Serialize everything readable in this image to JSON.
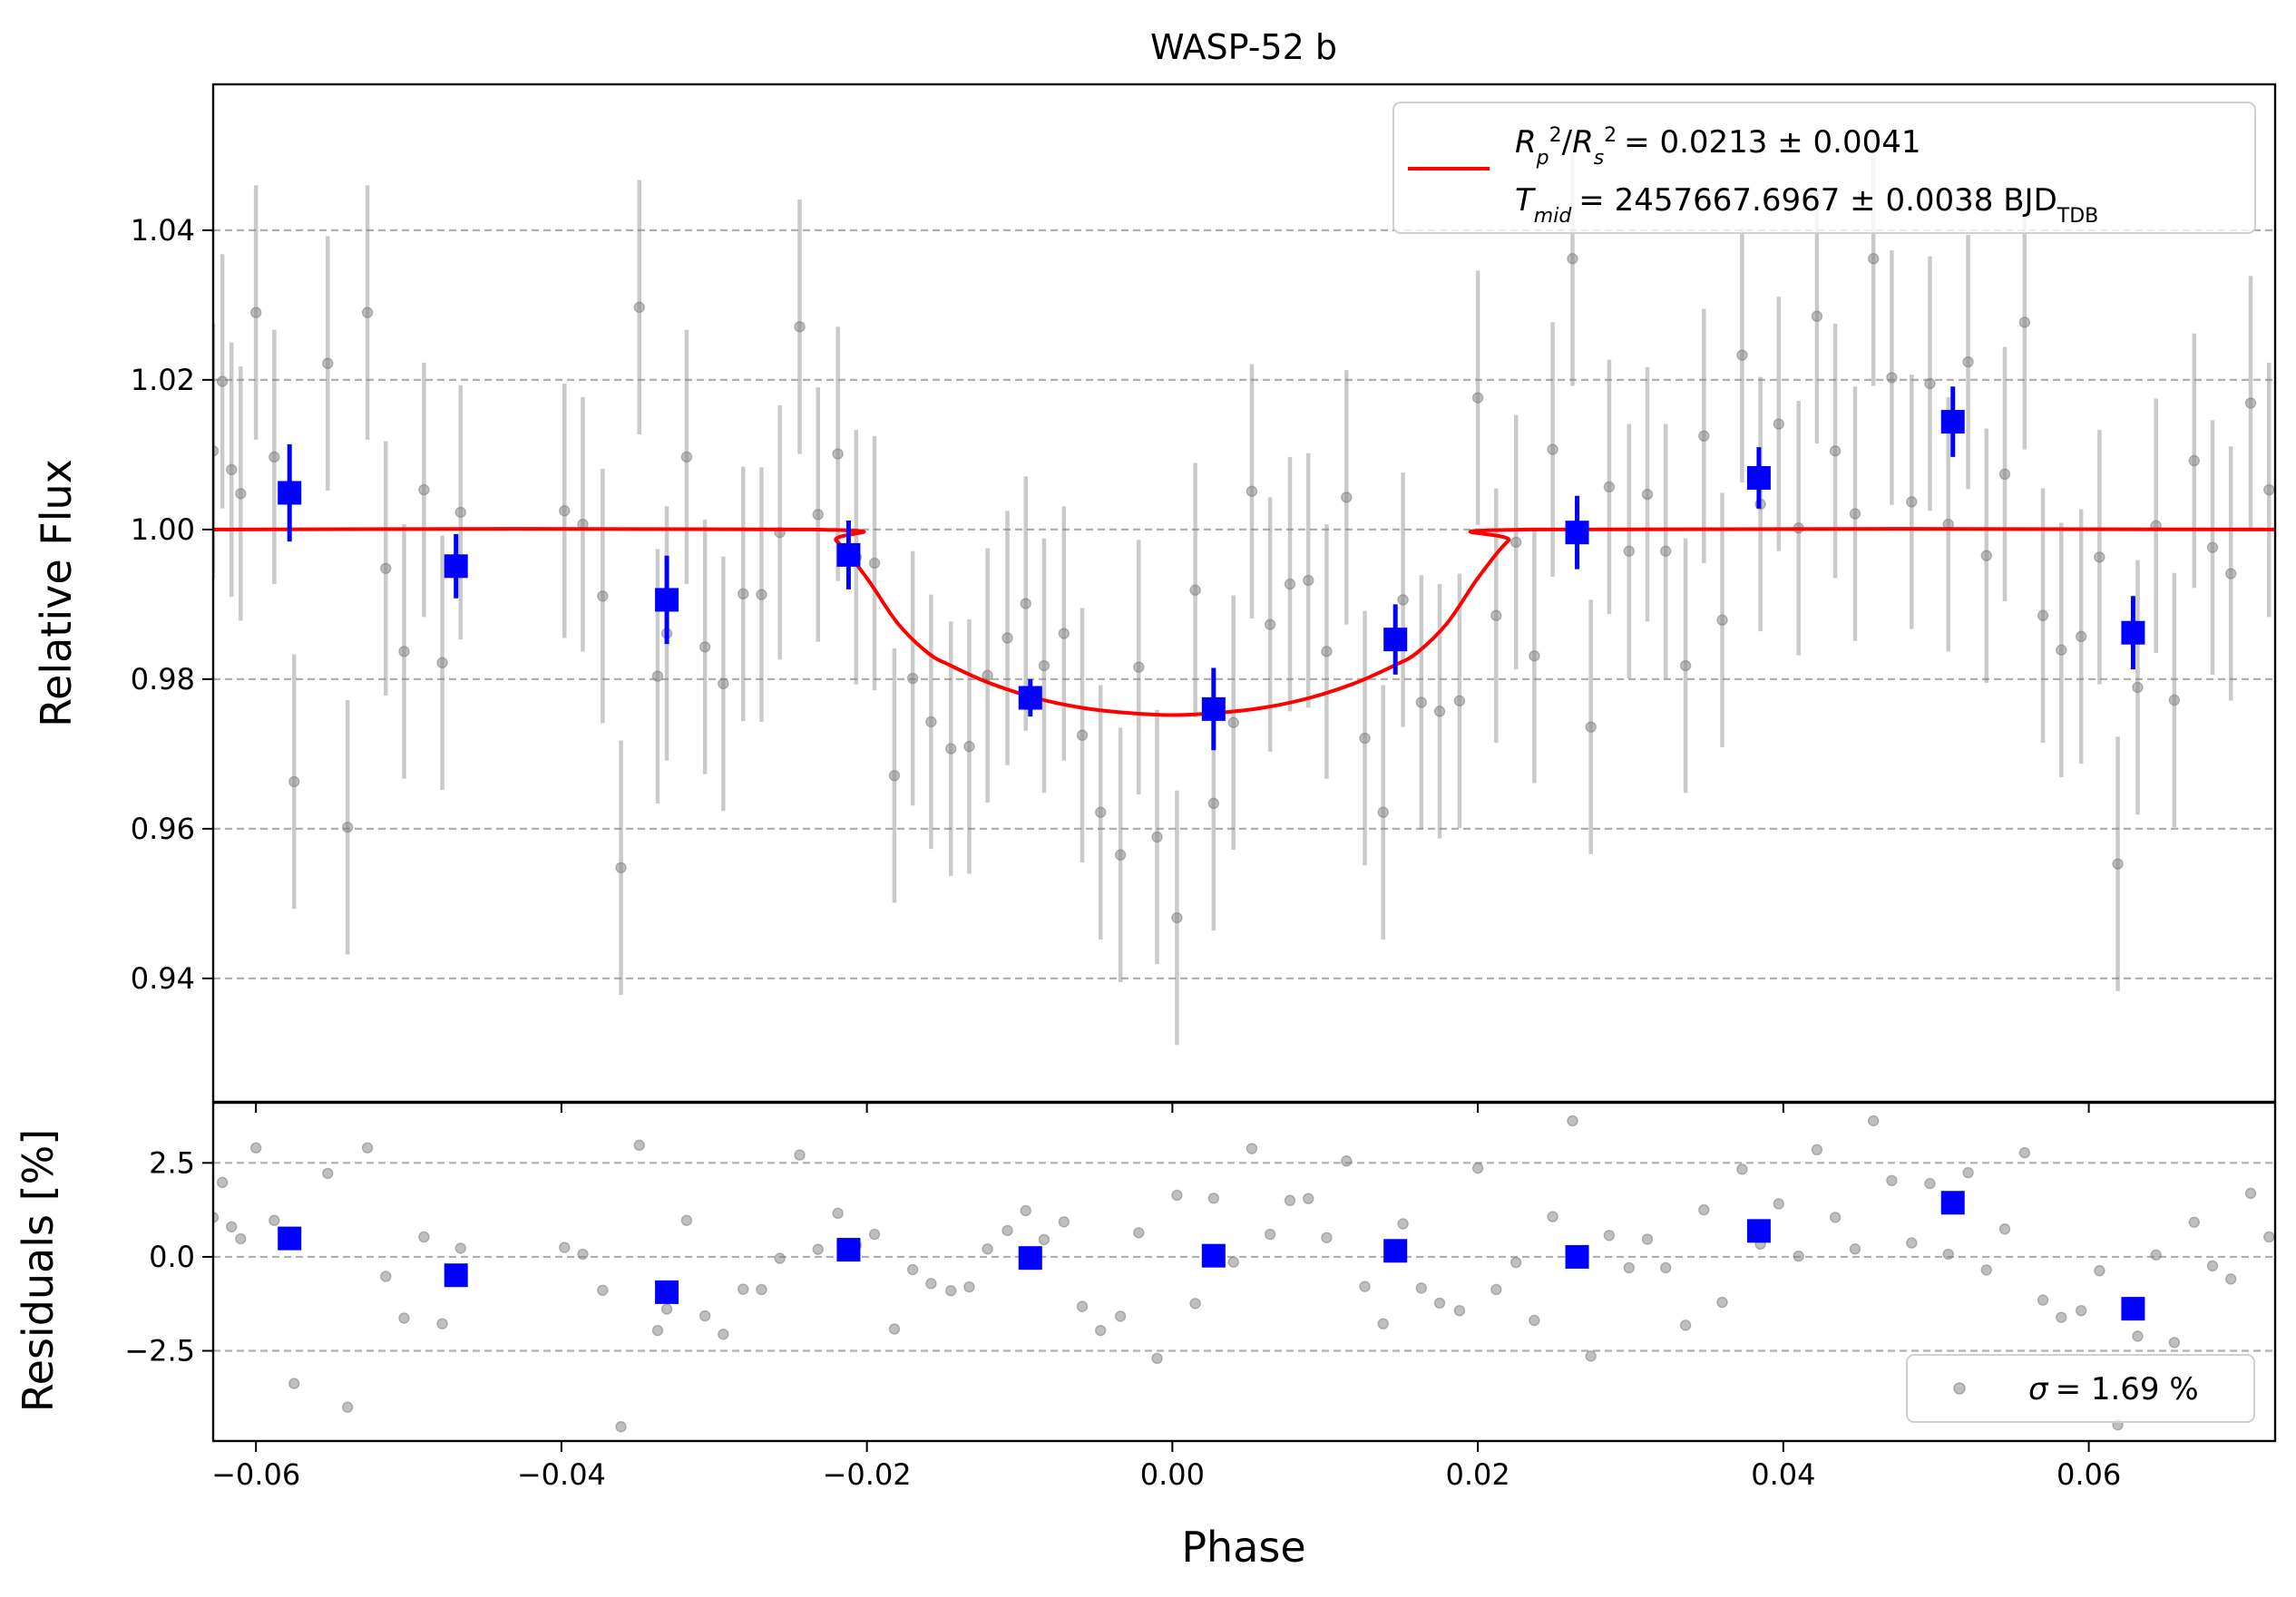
{
  "chart_data": {
    "type": "scatter",
    "title": "WASP-52 b",
    "xlabel": "Phase",
    "xlim": [
      -0.0628,
      0.0722
    ],
    "xticks": [
      -0.06,
      -0.04,
      -0.02,
      0.0,
      0.02,
      0.04,
      0.06
    ],
    "xtick_labels": [
      "−0.06",
      "−0.04",
      "−0.02",
      "0.00",
      "0.02",
      "0.04",
      "0.06"
    ],
    "top_panel": {
      "ylabel": "Relative Flux",
      "ylim": [
        0.9235,
        1.0595
      ],
      "yticks": [
        0.94,
        0.96,
        0.98,
        1.0,
        1.02,
        1.04
      ],
      "ytick_labels": [
        "0.94",
        "0.96",
        "0.98",
        "1.00",
        "1.02",
        "1.04"
      ],
      "grid": "y-dashed",
      "legend_position": "top-right",
      "legend": {
        "rp_label": "Rₚ²/Rₛ² = 0.0213 ± 0.0041",
        "rp_value": "= 0.0213 ± 0.0041",
        "tmid_value": "= 2457667.6967 ± 0.0038 BJD",
        "tmid_sub": "TDB"
      },
      "model_curve": {
        "color": "#ff0000",
        "x": [
          -0.0628,
          -0.0235,
          -0.022,
          -0.02,
          -0.018,
          -0.016,
          -0.0145,
          -0.012,
          -0.009,
          -0.006,
          -0.003,
          0.0,
          0.003,
          0.006,
          0.009,
          0.012,
          0.0145,
          0.016,
          0.018,
          0.02,
          0.022,
          0.0235,
          0.0722
        ],
        "y": [
          1.0,
          1.0,
          0.9985,
          0.9935,
          0.9875,
          0.9835,
          0.9818,
          0.9795,
          0.9775,
          0.9762,
          0.9755,
          0.9752,
          0.9755,
          0.9762,
          0.9775,
          0.9795,
          0.9818,
          0.9835,
          0.9875,
          0.9935,
          0.9985,
          1.0,
          1.0
        ]
      },
      "raw_points": {
        "color": "#808080",
        "x": [
          -0.0628,
          -0.0622,
          -0.0616,
          -0.061,
          -0.06,
          -0.0588,
          -0.0575,
          -0.0553,
          -0.054,
          -0.0527,
          -0.0515,
          -0.0503,
          -0.049,
          -0.0478,
          -0.0466,
          -0.0398,
          -0.0386,
          -0.0373,
          -0.0361,
          -0.0349,
          -0.0337,
          -0.0331,
          -0.0318,
          -0.0306,
          -0.0294,
          -0.0281,
          -0.0269,
          -0.0257,
          -0.0244,
          -0.0232,
          -0.0219,
          -0.0207,
          -0.0195,
          -0.0182,
          -0.017,
          -0.0158,
          -0.0145,
          -0.0133,
          -0.0121,
          -0.0108,
          -0.0096,
          -0.0084,
          -0.0071,
          -0.0059,
          -0.0047,
          -0.0034,
          -0.0022,
          -0.001,
          0.0003,
          0.0015,
          0.0027,
          0.004,
          0.0052,
          0.0064,
          0.0077,
          0.0089,
          0.0101,
          0.0114,
          0.0126,
          0.0138,
          0.0151,
          0.0163,
          0.0175,
          0.0188,
          0.02,
          0.0212,
          0.0225,
          0.0237,
          0.0249,
          0.0262,
          0.0274,
          0.0286,
          0.0299,
          0.0311,
          0.0323,
          0.0336,
          0.0348,
          0.036,
          0.0373,
          0.0385,
          0.0397,
          0.041,
          0.0422,
          0.0434,
          0.0447,
          0.0459,
          0.0471,
          0.0484,
          0.0496,
          0.0508,
          0.0521,
          0.0533,
          0.0545,
          0.0558,
          0.057,
          0.0582,
          0.0595,
          0.0607,
          0.0619,
          0.0632,
          0.0644,
          0.0656,
          0.0669,
          0.0681,
          0.0693,
          0.0706,
          0.0718
        ],
        "y": [
          1.0105,
          1.0198,
          1.008,
          1.0048,
          1.029,
          1.0097,
          0.9663,
          1.0222,
          0.9602,
          1.029,
          0.9948,
          0.9837,
          1.0053,
          0.9822,
          1.0023,
          1.0025,
          1.0007,
          0.9911,
          0.9548,
          1.0297,
          0.9804,
          0.9861,
          1.0097,
          0.9843,
          0.9794,
          0.9914,
          0.9913,
          0.9996,
          1.0271,
          1.002,
          1.0101,
          0.9963,
          0.9955,
          0.9671,
          0.9801,
          0.9743,
          0.9707,
          0.971,
          0.9805,
          0.9855,
          0.9901,
          0.9818,
          0.9861,
          0.9725,
          0.9622,
          0.9565,
          0.9816,
          0.9589,
          0.9481,
          0.9919,
          0.9634,
          0.9742,
          1.0051,
          0.9873,
          0.9927,
          0.9932,
          0.9837,
          1.0043,
          0.9721,
          0.9622,
          0.9906,
          0.9769,
          0.9757,
          0.9771,
          1.0176,
          0.9885,
          0.9983,
          0.9831,
          1.0107,
          1.0362,
          0.9736,
          1.0057,
          0.9971,
          1.0047,
          0.9971,
          0.9818,
          1.0125,
          0.9879,
          1.0233,
          1.0034,
          1.0141,
          1.0002,
          1.0285,
          1.0105,
          1.0021,
          1.0362,
          1.0203,
          1.0037,
          1.0195,
          1.0007,
          1.0224,
          0.9965,
          1.0074,
          1.0277,
          0.9885,
          0.9839,
          0.9857,
          0.9963,
          0.9553,
          0.9789,
          1.0005,
          0.9772,
          1.0092,
          0.9976,
          0.9941,
          1.0169,
          1.0053
        ],
        "yerr": [
          0.017,
          0.017,
          0.017,
          0.017,
          0.017,
          0.017,
          0.017,
          0.017,
          0.017,
          0.017,
          0.017,
          0.017,
          0.017,
          0.017,
          0.017,
          0.017,
          0.017,
          0.017,
          0.017,
          0.017,
          0.017,
          0.017,
          0.017,
          0.017,
          0.017,
          0.017,
          0.017,
          0.017,
          0.017,
          0.017,
          0.017,
          0.017,
          0.017,
          0.017,
          0.017,
          0.017,
          0.017,
          0.017,
          0.017,
          0.017,
          0.017,
          0.017,
          0.017,
          0.017,
          0.017,
          0.017,
          0.017,
          0.017,
          0.017,
          0.017,
          0.017,
          0.017,
          0.017,
          0.017,
          0.017,
          0.017,
          0.017,
          0.017,
          0.017,
          0.017,
          0.017,
          0.017,
          0.017,
          0.017,
          0.017,
          0.017,
          0.017,
          0.017,
          0.017,
          0.017,
          0.017,
          0.017,
          0.017,
          0.017,
          0.017,
          0.017,
          0.017,
          0.017,
          0.017,
          0.017,
          0.017,
          0.017,
          0.017,
          0.017,
          0.017,
          0.017,
          0.017,
          0.017,
          0.017,
          0.017,
          0.017,
          0.017,
          0.017,
          0.017,
          0.017,
          0.017,
          0.017,
          0.017,
          0.017,
          0.017,
          0.017,
          0.017,
          0.017,
          0.017,
          0.017,
          0.017,
          0.017
        ]
      },
      "binned_points": {
        "color": "#0000ff",
        "x": [
          -0.0578,
          -0.0469,
          -0.0331,
          -0.0212,
          -0.0093,
          0.0027,
          0.0146,
          0.0265,
          0.0384,
          0.0511,
          0.0629
        ],
        "y": [
          1.0049,
          0.9951,
          0.9906,
          0.9966,
          0.9775,
          0.976,
          0.9853,
          0.9996,
          1.0069,
          1.0144,
          0.9862
        ],
        "yerr": [
          0.0065,
          0.0043,
          0.0059,
          0.0046,
          0.0025,
          0.0055,
          0.0047,
          0.0049,
          0.0041,
          0.0047,
          0.0049
        ]
      }
    },
    "bottom_panel": {
      "ylabel": "Residuals [%]",
      "ylim": [
        -4.9,
        4.1
      ],
      "yticks": [
        -2.5,
        0.0,
        2.5
      ],
      "ytick_labels": [
        "−2.5",
        "0.0",
        "2.5"
      ],
      "grid": "y-dashed",
      "legend_position": "bottom-right",
      "legend": {
        "sigma_label": "σ = 1.69 %",
        "sigma_value": "= 1.69 %"
      },
      "raw_points": {
        "color": "#808080",
        "y": [
          1.05,
          1.98,
          0.8,
          0.48,
          2.9,
          0.97,
          -3.37,
          2.22,
          -4.0,
          2.9,
          -0.52,
          -1.63,
          0.53,
          -1.78,
          0.23,
          0.25,
          0.07,
          -0.89,
          -4.52,
          2.97,
          -1.96,
          -1.39,
          0.97,
          -1.57,
          -2.06,
          -0.86,
          -0.87,
          -0.04,
          2.71,
          0.2,
          1.16,
          0.31,
          0.6,
          -1.92,
          -0.34,
          -0.71,
          -0.9,
          -0.8,
          0.21,
          0.7,
          1.23,
          0.46,
          0.93,
          -1.32,
          -1.96,
          -1.58,
          0.64,
          -2.7,
          1.64,
          -1.24,
          1.56,
          -0.14,
          2.88,
          0.6,
          1.5,
          1.55,
          0.51,
          2.55,
          -0.79,
          -1.78,
          0.88,
          -0.83,
          -1.23,
          -1.43,
          2.36,
          -0.87,
          -0.15,
          -1.69,
          1.07,
          3.62,
          -2.64,
          0.57,
          -0.29,
          0.47,
          -0.29,
          -1.82,
          1.25,
          -1.21,
          2.33,
          0.34,
          1.41,
          0.02,
          2.85,
          1.05,
          0.21,
          3.62,
          2.03,
          0.37,
          1.95,
          0.07,
          2.24,
          -0.35,
          0.74,
          2.77,
          -1.15,
          -1.61,
          -1.43,
          -0.37,
          -4.47,
          -2.11,
          0.05,
          -2.28,
          0.92,
          -0.24,
          -0.59,
          1.69,
          0.53
        ]
      },
      "binned_points": {
        "color": "#0000ff",
        "y": [
          0.49,
          -0.49,
          -0.94,
          0.19,
          -0.03,
          0.03,
          0.16,
          0.0,
          0.69,
          1.44,
          -1.38
        ]
      }
    }
  }
}
